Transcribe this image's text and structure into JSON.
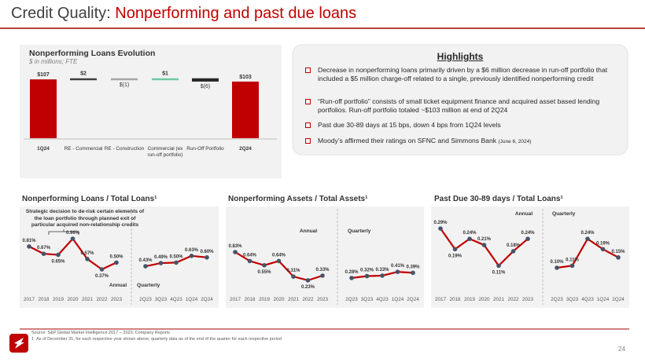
{
  "title": {
    "label": "Credit Quality:",
    "topic": "Nonperforming and past due loans"
  },
  "highlights": {
    "title": "Highlights",
    "bullets": [
      {
        "text": "Decrease in nonperforming loans primarily driven by a $6 million decrease in run-off portfolio that included a $5 million charge-off related to a single, previously identified nonperforming credit"
      },
      {
        "text": "“Run-off portfolio” consists of small ticket equipment finance and acquired asset based lending portfolios. Run-off portfolio totaled ~$103 million at end of 2Q24"
      },
      {
        "text": "Past due 30-89 days at 15 bps, down 4 bps from 1Q24 levels"
      },
      {
        "text": "Moody’s affirmed their ratings on SFNC and Simmons Bank",
        "note": "(June 6, 2024)"
      }
    ]
  },
  "chart_data": [
    {
      "type": "waterfall",
      "title": "Nonperforming Loans Evolution",
      "subtitle": "$ in millions; FTE",
      "categories": [
        "1Q24",
        "RE - Commercial",
        "RE - Construction",
        "Commercial (ex run-off portfolio)",
        "Run-Off Portfolio",
        "2Q24"
      ],
      "values": [
        107,
        2,
        -1,
        1,
        -6,
        103
      ],
      "value_labels": [
        "$107",
        "$2",
        "$(1)",
        "$1",
        "$(6)",
        "$103"
      ],
      "colors": [
        "#c00000",
        "#404040",
        "#a6a6a6",
        "#70c8a4",
        "#262626",
        "#c00000"
      ]
    },
    {
      "type": "line",
      "title": "Nonperforming Loans / Total Loans¹",
      "annotation": "Strategic decision to de-risk certain elements of the loan portfolio through planned exit of particular acquired non-relationship credits",
      "color": "#c00000",
      "marker_color": "#44546a",
      "panels": [
        {
          "name": "Annual",
          "categories": [
            "2017",
            "2018",
            "2019",
            "2020",
            "2021",
            "2022",
            "2023"
          ],
          "values": [
            0.81,
            0.67,
            0.65,
            0.96,
            0.57,
            0.37,
            0.5
          ],
          "value_labels": [
            "0.81%",
            "0.67%",
            "0.65%",
            "0.96%",
            "0.57%",
            "0.37%",
            "0.50%"
          ]
        },
        {
          "name": "Quarterly",
          "categories": [
            "2Q23",
            "3Q23",
            "4Q23",
            "1Q24",
            "2Q24"
          ],
          "values": [
            0.43,
            0.49,
            0.5,
            0.63,
            0.6
          ],
          "value_labels": [
            "0.43%",
            "0.49%",
            "0.50%",
            "0.63%",
            "0.60%"
          ]
        }
      ]
    },
    {
      "type": "line",
      "title": "Nonperforming Assets / Total Assets¹",
      "color": "#c00000",
      "marker_color": "#44546a",
      "panels": [
        {
          "name": "Annual",
          "categories": [
            "2017",
            "2018",
            "2019",
            "2020",
            "2021",
            "2022",
            "2023"
          ],
          "values": [
            0.83,
            0.64,
            0.55,
            0.64,
            0.31,
            0.23,
            0.33
          ],
          "value_labels": [
            "0.83%",
            "0.64%",
            "0.55%",
            "0.64%",
            "0.31%",
            "0.23%",
            "0.33%"
          ]
        },
        {
          "name": "Quarterly",
          "categories": [
            "2Q23",
            "3Q23",
            "4Q23",
            "1Q24",
            "2Q24"
          ],
          "values": [
            0.28,
            0.32,
            0.33,
            0.41,
            0.39
          ],
          "value_labels": [
            "0.28%",
            "0.32%",
            "0.33%",
            "0.41%",
            "0.39%"
          ]
        }
      ]
    },
    {
      "type": "line",
      "title": "Past Due 30-89 days / Total Loans¹",
      "color": "#c00000",
      "marker_color": "#44546a",
      "panels": [
        {
          "name": "Annual",
          "categories": [
            "2017",
            "2018",
            "2019",
            "2020",
            "2021",
            "2022",
            "2023"
          ],
          "values": [
            0.29,
            0.19,
            0.24,
            0.21,
            0.11,
            0.18,
            0.24
          ],
          "value_labels": [
            "0.29%",
            "0.19%",
            "0.24%",
            "0.21%",
            "0.11%",
            "0.18%",
            "0.24%"
          ]
        },
        {
          "name": "Quarterly",
          "categories": [
            "2Q23",
            "3Q23",
            "4Q23",
            "1Q24",
            "2Q24"
          ],
          "values": [
            0.1,
            0.11,
            0.24,
            0.19,
            0.15
          ],
          "value_labels": [
            "0.10%",
            "0.11%",
            "0.24%",
            "0.19%",
            "0.15%"
          ]
        }
      ]
    }
  ],
  "footer": {
    "source": "Source: S&P Global Market Intelligence 2017 – 2023; Company Reports",
    "footnote_number": "1",
    "footnote": "As of December 31, for each respective year shown above; quarterly data as of the end of the quarter for each respective period",
    "page": "24"
  }
}
